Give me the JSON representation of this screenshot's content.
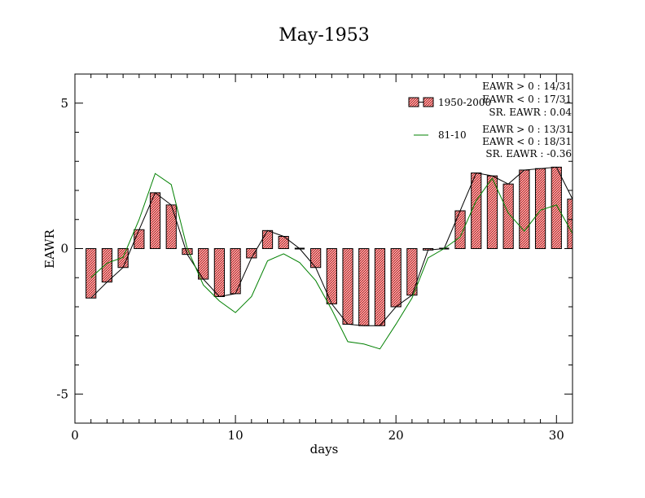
{
  "chart_data": {
    "type": "bar",
    "title": "May-1953",
    "xlabel": "days",
    "ylabel": "EAWR",
    "xlim": [
      0,
      31
    ],
    "ylim": [
      -6,
      6
    ],
    "xticks": [
      0,
      10,
      20,
      30
    ],
    "yticks": [
      -5,
      0,
      5
    ],
    "grid": false,
    "legend_position": "top-right",
    "series": [
      {
        "name": "1950-2000",
        "kind": "bar",
        "color": "#e57a7a",
        "x": [
          1,
          2,
          3,
          4,
          5,
          6,
          7,
          8,
          9,
          10,
          11,
          12,
          13,
          14,
          15,
          16,
          17,
          18,
          19,
          20,
          21,
          22,
          23,
          24,
          25,
          26,
          27,
          28,
          29,
          30,
          31
        ],
        "values": [
          -1.7,
          -1.15,
          -0.65,
          0.65,
          1.92,
          1.5,
          -0.2,
          -1.05,
          -1.65,
          -1.55,
          -0.32,
          0.62,
          0.42,
          0.0,
          -0.65,
          -1.9,
          -2.6,
          -2.65,
          -2.65,
          -2.0,
          -1.6,
          -0.05,
          0.0,
          1.3,
          2.6,
          2.5,
          2.22,
          2.7,
          2.75,
          2.8,
          1.7
        ]
      },
      {
        "name": "81-10",
        "kind": "line",
        "color": "#008000",
        "x": [
          1,
          2,
          3,
          4,
          5,
          6,
          7,
          8,
          9,
          10,
          11,
          12,
          13,
          14,
          15,
          16,
          17,
          18,
          19,
          20,
          21,
          22,
          23,
          24,
          25,
          26,
          27,
          28,
          29,
          30,
          31
        ],
        "values": [
          -1.0,
          -0.5,
          -0.3,
          1.0,
          2.58,
          2.2,
          0.0,
          -1.25,
          -1.8,
          -2.2,
          -1.65,
          -0.42,
          -0.18,
          -0.48,
          -1.1,
          -2.1,
          -3.2,
          -3.28,
          -3.45,
          -2.6,
          -1.7,
          -0.32,
          0.0,
          0.4,
          1.65,
          2.42,
          1.22,
          0.6,
          1.32,
          1.5,
          0.52
        ]
      }
    ],
    "legend": [
      {
        "label": "1950-2000",
        "stats": [
          "EAWR > 0 : 14/31",
          "EAWR < 0 : 17/31",
          "SR. EAWR :  0.04"
        ]
      },
      {
        "label": "81-10",
        "stats": [
          "EAWR > 0 : 13/31",
          "EAWR < 0 : 18/31",
          "SR. EAWR : -0.36"
        ]
      }
    ]
  }
}
